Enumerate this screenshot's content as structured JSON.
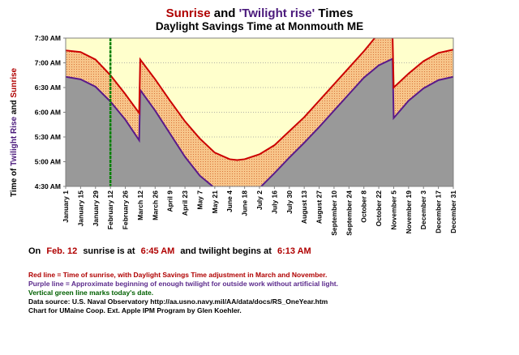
{
  "title": {
    "part1": "Sunrise",
    "part2": " and ",
    "part3": "'Twilight rise'",
    "part4": "  Times"
  },
  "subtitle": "Daylight Savings Time at Monmouth ME",
  "ylabel": {
    "part1": "Time of ",
    "part2": "Twilight Rise",
    "part3": " and ",
    "part4": "Sunrise"
  },
  "today_line": {
    "prefix": "On",
    "date": "Feb. 12",
    "mid": "sunrise is at",
    "sunrise": "6:45 AM",
    "mid2": "and twilight begins at",
    "twilight": "6:13 AM"
  },
  "notes": {
    "red": "Red line = Time of sunrise, with Daylight Savings Time adjustment in March and November.",
    "purple": "Purple line = Approximate beginning of enough twilight  for outside work without artificial light.",
    "green": "Vertical green line marks today's date.",
    "source": "Data source:  U.S. Naval Observatory     http://aa.usno.navy.mil/AA/data/docs/RS_OneYear.htm",
    "credit": "Chart for UMaine Coop. Ext. Apple IPM Program by Glen Koehler."
  },
  "colors": {
    "plot_bg": "#ffffcc",
    "sunrise_line": "#cc0000",
    "twilight_line": "#5a1a8a",
    "band_fill": "#f7c58a",
    "below_fill": "#999999",
    "today_line": "#008000"
  },
  "chart_data": {
    "type": "area",
    "title": "Sunrise and 'Twilight rise'  Times",
    "subtitle": "Daylight Savings Time at Monmouth ME",
    "ylabel": "Time of Twilight Rise and Sunrise",
    "y_ticks": [
      "4:30 AM",
      "5:00 AM",
      "5:30 AM",
      "6:00 AM",
      "6:30 AM",
      "7:00 AM",
      "7:30 AM"
    ],
    "ylim_minutes": [
      270,
      450
    ],
    "x_ticks": [
      "January 1",
      "January 15",
      "January 29",
      "February 12",
      "February 26",
      "March 12",
      "March 26",
      "April 9",
      "April 23",
      "May 7",
      "May 21",
      "June 4",
      "June 18",
      "July 2",
      "July 16",
      "July 30",
      "August 13",
      "August 27",
      "September 10",
      "September 24",
      "October 8",
      "October 22",
      "November 5",
      "November 19",
      "December 3",
      "December 17",
      "December 31"
    ],
    "today_day": 43,
    "grid": "horizontal",
    "series": [
      {
        "name": "Sunrise",
        "days": [
          1,
          15,
          29,
          43,
          57,
          70,
          71,
          85,
          99,
          113,
          127,
          141,
          155,
          162,
          169,
          183,
          197,
          211,
          225,
          239,
          253,
          267,
          281,
          295,
          308,
          309,
          323,
          337,
          351,
          365
        ],
        "minutes": [
          435,
          433,
          424,
          405,
          382,
          359,
          424,
          400,
          374,
          349,
          328,
          311,
          303,
          302,
          303,
          309,
          320,
          337,
          354,
          374,
          394,
          414,
          434,
          456,
          450,
          390,
          407,
          422,
          432,
          436
        ]
      },
      {
        "name": "Twilight rise",
        "days": [
          1,
          15,
          29,
          43,
          57,
          70,
          71,
          85,
          99,
          113,
          127,
          141,
          155,
          162,
          169,
          183,
          197,
          211,
          225,
          239,
          253,
          267,
          281,
          295,
          308,
          309,
          323,
          337,
          351,
          365
        ],
        "minutes": [
          403,
          400,
          391,
          373,
          351,
          326,
          387,
          362,
          334,
          306,
          283,
          268,
          265,
          266,
          267,
          268,
          286,
          305,
          323,
          342,
          362,
          382,
          402,
          417,
          425,
          353,
          374,
          389,
          399,
          403
        ]
      }
    ]
  }
}
